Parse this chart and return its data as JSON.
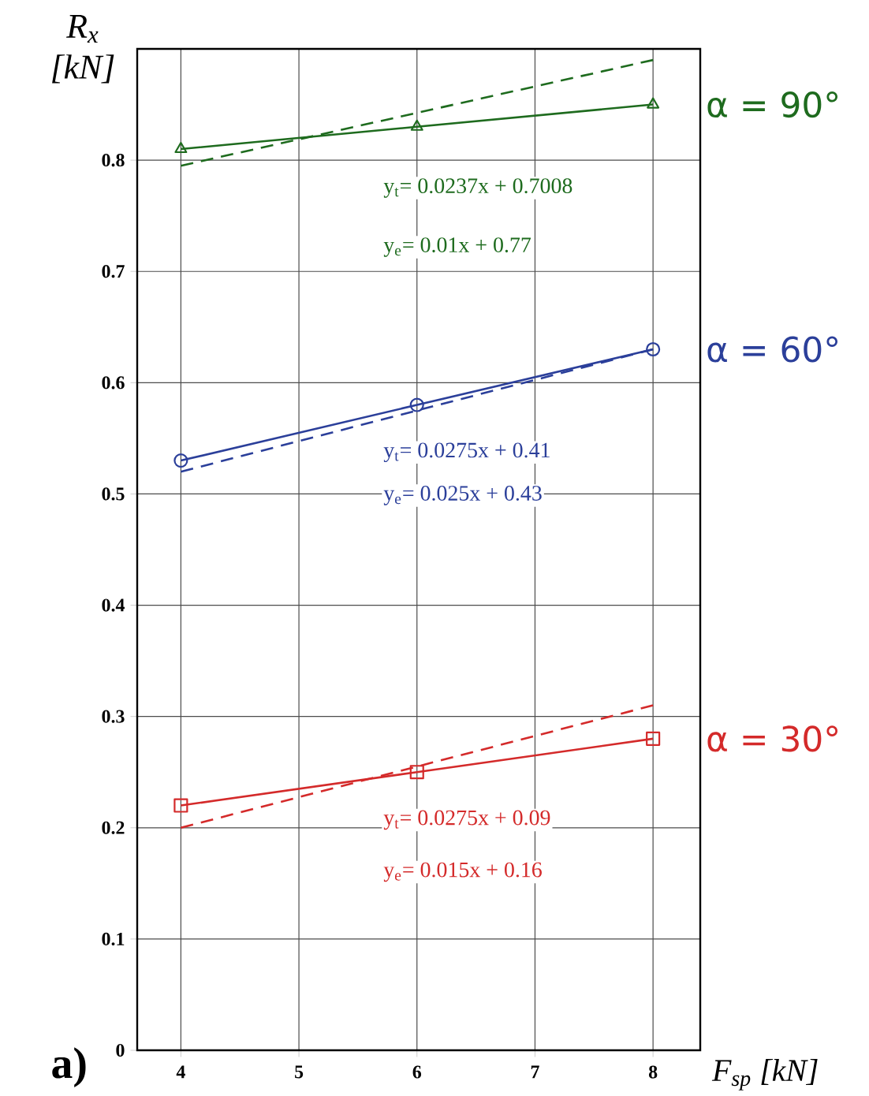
{
  "chart_data": {
    "type": "line",
    "xlabel": "F$_{sp}$ [kN]",
    "ylabel": "R$_{x}$ [kN]",
    "xlim": [
      3.63,
      8.4
    ],
    "xticks": [
      4,
      5,
      6,
      7,
      8
    ],
    "ylim": [
      0,
      0.9
    ],
    "yticks": [
      0,
      0.1,
      0.2,
      0.3,
      0.4,
      0.5,
      0.6,
      0.7,
      0.8
    ],
    "grid": true,
    "series": [
      {
        "name": "α = 90°",
        "color": "#1e6b1e",
        "x": [
          4,
          6,
          8
        ],
        "values": [
          0.81,
          0.83,
          0.85
        ],
        "marker": "triangle",
        "line_style": "solid"
      },
      {
        "color": "#1e6b1e",
        "x": [
          4,
          8
        ],
        "values": [
          0.795,
          0.89
        ],
        "marker": "none",
        "line_style": "dashed"
      },
      {
        "name": "α = 60°",
        "color": "#2b3f9a",
        "x": [
          4,
          6,
          8
        ],
        "values": [
          0.53,
          0.58,
          0.63
        ],
        "marker": "circle",
        "line_style": "solid"
      },
      {
        "color": "#2b3f9a",
        "x": [
          4,
          8
        ],
        "values": [
          0.52,
          0.63
        ],
        "marker": "none",
        "line_style": "dashed"
      },
      {
        "name": "α = 30°",
        "color": "#d42a2a",
        "x": [
          4,
          6,
          8
        ],
        "values": [
          0.22,
          0.25,
          0.28
        ],
        "marker": "square",
        "line_style": "solid"
      },
      {
        "color": "#d42a2a",
        "x": [
          4,
          8
        ],
        "values": [
          0.2,
          0.31
        ],
        "marker": "none",
        "line_style": "dashed"
      }
    ],
    "annotations": [
      "y$_{t}$= 0.0237x + 0.7008",
      "y$_{e}$= 0.01x + 0.77",
      "y$_{t}$= 0.0275x + 0.41",
      "y$_{e}$= 0.025x + 0.43",
      "y$_{t}$= 0.0275x + 0.09",
      "y$_{e}$= 0.015x + 0.16",
      "a)"
    ]
  }
}
